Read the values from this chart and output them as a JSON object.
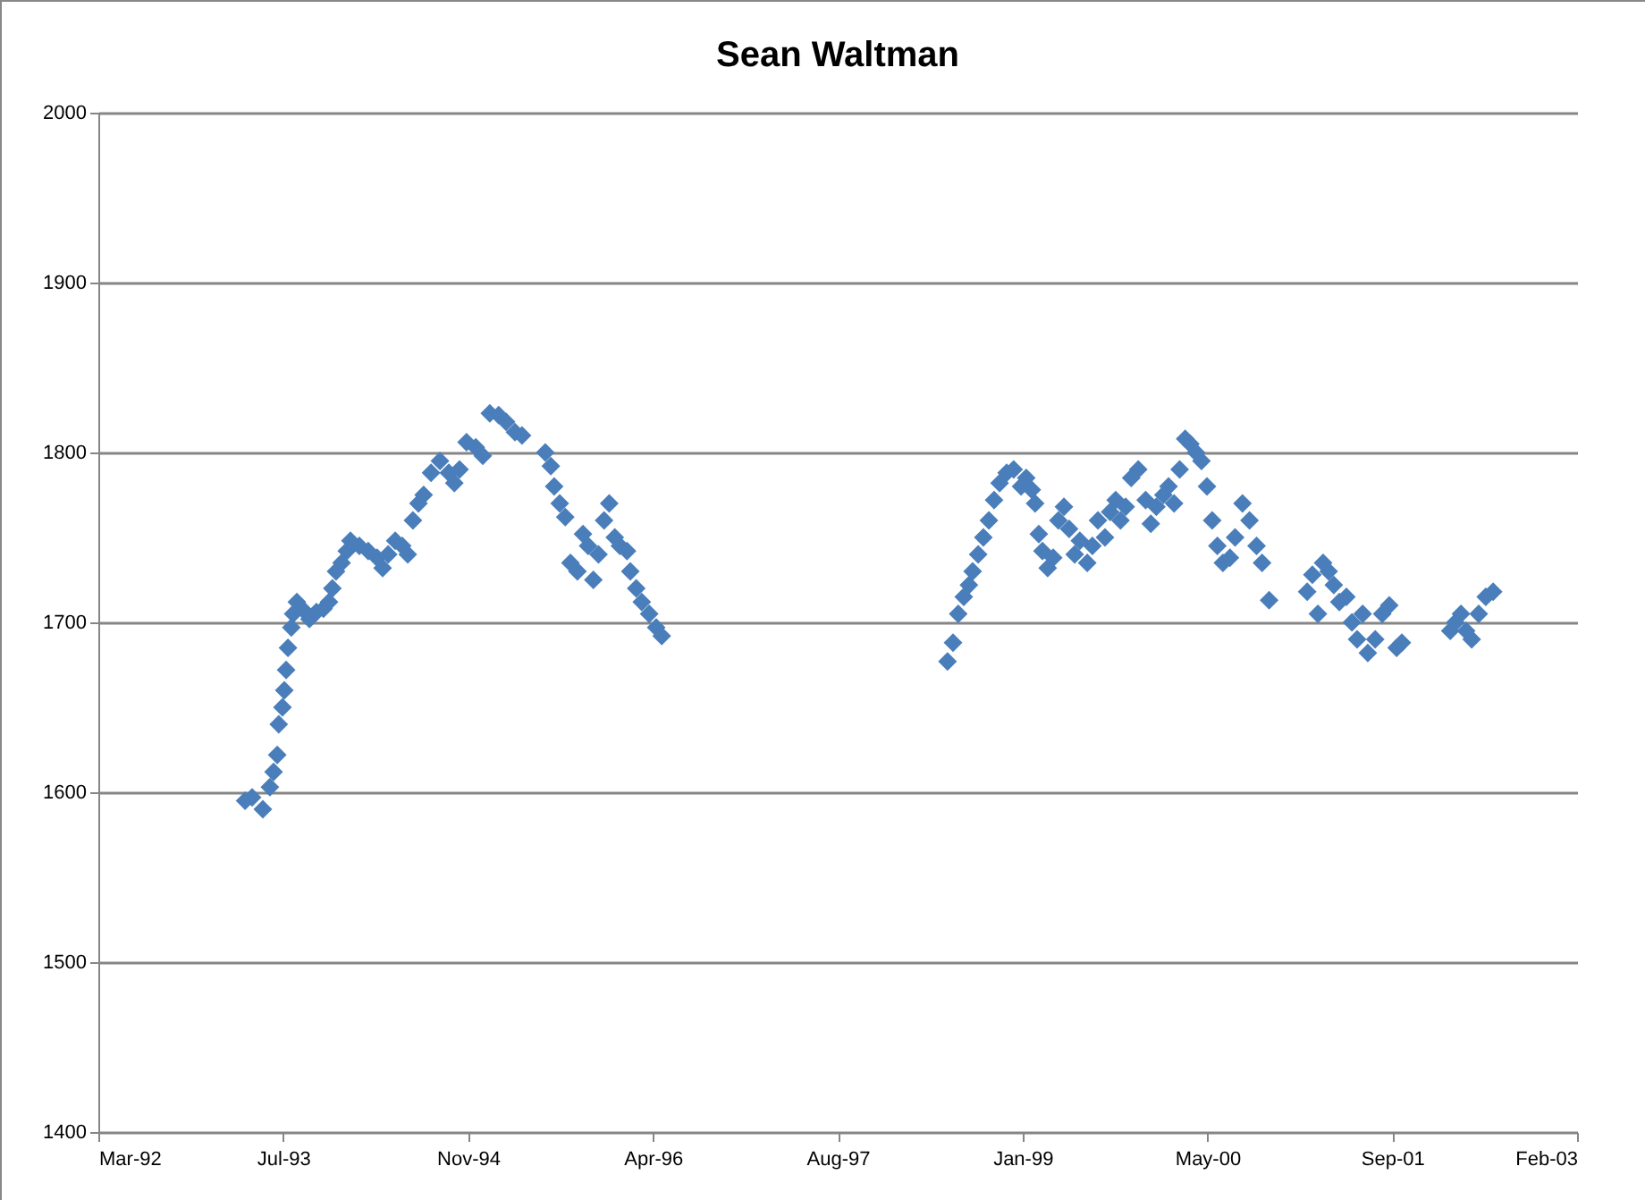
{
  "chart_data": {
    "type": "scatter",
    "title": "Sean Waltman",
    "marker": "diamond",
    "grid": "y",
    "xlim": [
      "1992-03-01",
      "2003-02-12"
    ],
    "xticks": [
      {
        "value": "1992-03-01",
        "label": "Mar-92"
      },
      {
        "value": "1993-07-14",
        "label": "Jul-93"
      },
      {
        "value": "1994-11-26",
        "label": "Nov-94"
      },
      {
        "value": "1996-04-09",
        "label": "Apr-96"
      },
      {
        "value": "1997-08-22",
        "label": "Aug-97"
      },
      {
        "value": "1999-01-04",
        "label": "Jan-99"
      },
      {
        "value": "2000-05-18",
        "label": "May-00"
      },
      {
        "value": "2001-09-30",
        "label": "Sep-01"
      },
      {
        "value": "2003-02-12",
        "label": "Feb-03"
      }
    ],
    "ylim": [
      1400,
      2000
    ],
    "yticks": [
      1400,
      1500,
      1600,
      1700,
      1800,
      1900,
      2000
    ],
    "series": [
      {
        "color": "#4a7ebb",
        "x": [
          "1993-04-02",
          "1993-04-21",
          "1993-05-20",
          "1993-06-08",
          "1993-06-18",
          "1993-06-28",
          "1993-07-02",
          "1993-07-12",
          "1993-07-17",
          "1993-07-22",
          "1993-07-27",
          "1993-08-05",
          "1993-08-10",
          "1993-08-20",
          "1993-09-03",
          "1993-09-23",
          "1993-10-12",
          "1993-10-31",
          "1993-11-15",
          "1993-11-24",
          "1993-12-04",
          "1993-12-19",
          "1994-01-02",
          "1994-01-12",
          "1994-02-05",
          "1994-03-01",
          "1994-03-25",
          "1994-04-09",
          "1994-04-24",
          "1994-05-13",
          "1994-06-01",
          "1994-06-16",
          "1994-06-30",
          "1994-07-15",
          "1994-07-29",
          "1994-08-18",
          "1994-09-11",
          "1994-10-05",
          "1994-10-20",
          "1994-11-03",
          "1994-11-22",
          "1994-12-17",
          "1995-01-05",
          "1995-01-24",
          "1995-02-17",
          "1995-03-09",
          "1995-04-02",
          "1995-04-21",
          "1995-06-23",
          "1995-07-08",
          "1995-07-17",
          "1995-08-01",
          "1995-08-16",
          "1995-08-30",
          "1995-09-18",
          "1995-10-03",
          "1995-10-17",
          "1995-10-31",
          "1995-11-14",
          "1995-11-29",
          "1995-12-13",
          "1995-12-28",
          "1996-01-11",
          "1996-01-30",
          "1996-02-08",
          "1996-02-24",
          "1996-03-10",
          "1996-03-30",
          "1996-04-18",
          "1996-05-03",
          "1998-06-15",
          "1998-06-30",
          "1998-07-14",
          "1998-07-29",
          "1998-08-12",
          "1998-08-22",
          "1998-09-06",
          "1998-09-20",
          "1998-10-05",
          "1998-10-19",
          "1998-11-03",
          "1998-11-22",
          "1998-12-11",
          "1998-12-31",
          "1999-01-14",
          "1999-01-29",
          "1999-02-07",
          "1999-02-17",
          "1999-02-27",
          "1999-03-13",
          "1999-03-28",
          "1999-04-11",
          "1999-04-26",
          "1999-05-10",
          "1999-05-25",
          "1999-06-08",
          "1999-06-28",
          "1999-07-12",
          "1999-07-27",
          "1999-08-15",
          "1999-08-29",
          "1999-09-13",
          "1999-09-26",
          "1999-10-10",
          "1999-10-25",
          "1999-11-13",
          "1999-12-03",
          "1999-12-17",
          "2000-01-01",
          "2000-01-20",
          "2000-02-03",
          "2000-02-18",
          "2000-03-04",
          "2000-03-19",
          "2000-04-02",
          "2000-04-17",
          "2000-05-02",
          "2000-05-17",
          "2000-05-31",
          "2000-06-14",
          "2000-06-29",
          "2000-07-18",
          "2000-08-01",
          "2000-08-21",
          "2000-09-09",
          "2000-09-28",
          "2000-10-13",
          "2000-11-01",
          "2001-02-12",
          "2001-02-26",
          "2001-03-13",
          "2001-03-27",
          "2001-04-11",
          "2001-04-25",
          "2001-05-10",
          "2001-05-29",
          "2001-06-13",
          "2001-06-27",
          "2001-07-12",
          "2001-07-26",
          "2001-08-15",
          "2001-09-03",
          "2001-09-22",
          "2001-10-12",
          "2001-10-26",
          "2002-03-06",
          "2002-03-20",
          "2002-04-04",
          "2002-04-18",
          "2002-05-03",
          "2002-05-22",
          "2002-06-10",
          "2002-06-30"
        ],
        "values": [
          1595,
          1597,
          1590,
          1603,
          1612,
          1622,
          1640,
          1650,
          1660,
          1672,
          1685,
          1697,
          1705,
          1712,
          1708,
          1702,
          1706,
          1708,
          1712,
          1720,
          1730,
          1735,
          1742,
          1748,
          1745,
          1742,
          1738,
          1732,
          1740,
          1748,
          1745,
          1740,
          1760,
          1770,
          1775,
          1788,
          1795,
          1788,
          1782,
          1790,
          1806,
          1803,
          1798,
          1823,
          1822,
          1818,
          1812,
          1810,
          1800,
          1792,
          1780,
          1770,
          1762,
          1735,
          1730,
          1752,
          1745,
          1725,
          1740,
          1760,
          1770,
          1750,
          1745,
          1742,
          1730,
          1720,
          1712,
          1705,
          1697,
          1692,
          1677,
          1688,
          1705,
          1715,
          1722,
          1730,
          1740,
          1750,
          1760,
          1772,
          1782,
          1788,
          1790,
          1780,
          1785,
          1778,
          1770,
          1752,
          1742,
          1732,
          1738,
          1760,
          1768,
          1755,
          1740,
          1748,
          1735,
          1745,
          1760,
          1750,
          1765,
          1772,
          1760,
          1768,
          1785,
          1790,
          1772,
          1758,
          1768,
          1775,
          1780,
          1770,
          1790,
          1808,
          1805,
          1800,
          1795,
          1780,
          1760,
          1745,
          1735,
          1738,
          1750,
          1770,
          1760,
          1745,
          1735,
          1713,
          1718,
          1728,
          1705,
          1735,
          1730,
          1722,
          1712,
          1715,
          1700,
          1690,
          1705,
          1682,
          1690,
          1705,
          1710,
          1685,
          1688,
          1695,
          1700,
          1705,
          1695,
          1690,
          1705,
          1715,
          1718
        ]
      }
    ]
  }
}
